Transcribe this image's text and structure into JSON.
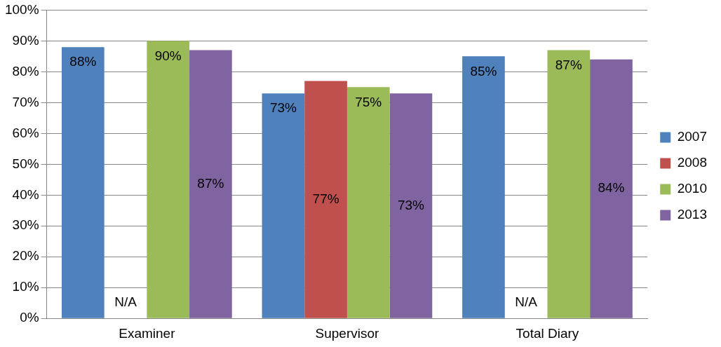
{
  "chart_data": {
    "type": "bar",
    "categories": [
      "Examiner",
      "Supervisor",
      "Total Diary"
    ],
    "series": [
      {
        "name": "2007",
        "color": "#4f81bd",
        "values": [
          88,
          73,
          85
        ],
        "value_labels": [
          "88%",
          "73%",
          "85%"
        ]
      },
      {
        "name": "2008",
        "color": "#c0504d",
        "values": [
          null,
          77,
          null
        ],
        "value_labels": [
          "N/A",
          "77%",
          "N/A"
        ]
      },
      {
        "name": "2010",
        "color": "#9bbb59",
        "values": [
          90,
          75,
          87
        ],
        "value_labels": [
          "90%",
          "75%",
          "87%"
        ]
      },
      {
        "name": "2013",
        "color": "#8064a2",
        "values": [
          87,
          73,
          84
        ],
        "value_labels": [
          "87%",
          "73%",
          "84%"
        ]
      }
    ],
    "ylim": [
      0,
      100
    ],
    "yticks": [
      {
        "value": 0,
        "label": "0%"
      },
      {
        "value": 10,
        "label": "10%"
      },
      {
        "value": 20,
        "label": "20%"
      },
      {
        "value": 30,
        "label": "30%"
      },
      {
        "value": 40,
        "label": "40%"
      },
      {
        "value": 50,
        "label": "50%"
      },
      {
        "value": 60,
        "label": "60%"
      },
      {
        "value": 70,
        "label": "70%"
      },
      {
        "value": 80,
        "label": "80%"
      },
      {
        "value": 90,
        "label": "90%"
      },
      {
        "value": 100,
        "label": "100%"
      }
    ],
    "grid": "y",
    "legend": "right"
  }
}
